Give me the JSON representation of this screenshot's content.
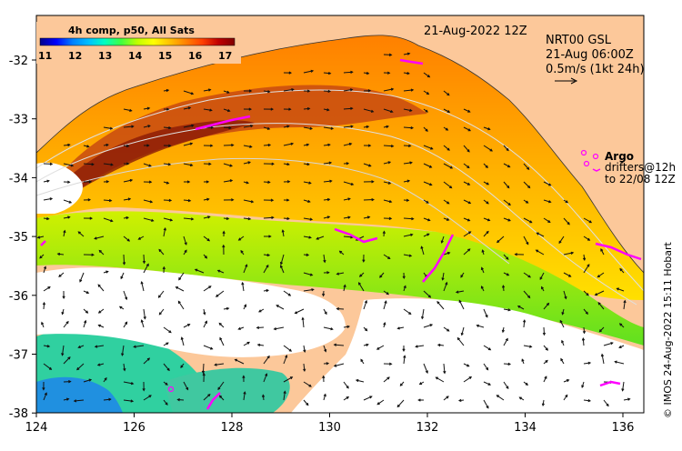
{
  "map": {
    "date_label": "21-Aug-2022 12Z",
    "credit": "© IMOS 24-Aug-2022 15:11 Hobart",
    "current_source": "NRT00 GSL",
    "current_time": "21-Aug 06:00Z",
    "current_scale": "0.5m/s (1kt 24h)",
    "argo_label": "Argo",
    "drifters_line1": "drifters@12h",
    "drifters_line2": "to 22/08 12Z",
    "colors": {
      "land": "#fcc89a",
      "argo": "#ff00ff",
      "no_data": "#ffffff"
    }
  },
  "colorbar": {
    "title": "4h comp, p50, All Sats",
    "labels": [
      "11",
      "12",
      "13",
      "14",
      "15",
      "16",
      "17"
    ],
    "colors": [
      "#00008b",
      "#0000ff",
      "#0080ff",
      "#00c0ff",
      "#00ffc0",
      "#40ff40",
      "#c0ff00",
      "#ffff00",
      "#ffc000",
      "#ff8000",
      "#ff4000",
      "#c00000",
      "#800000"
    ]
  },
  "axes": {
    "x_ticks": [
      "124",
      "126",
      "128",
      "130",
      "132",
      "134",
      "136"
    ],
    "y_ticks": [
      "-32",
      "-33",
      "-34",
      "-35",
      "-36",
      "-37",
      "-38"
    ]
  }
}
